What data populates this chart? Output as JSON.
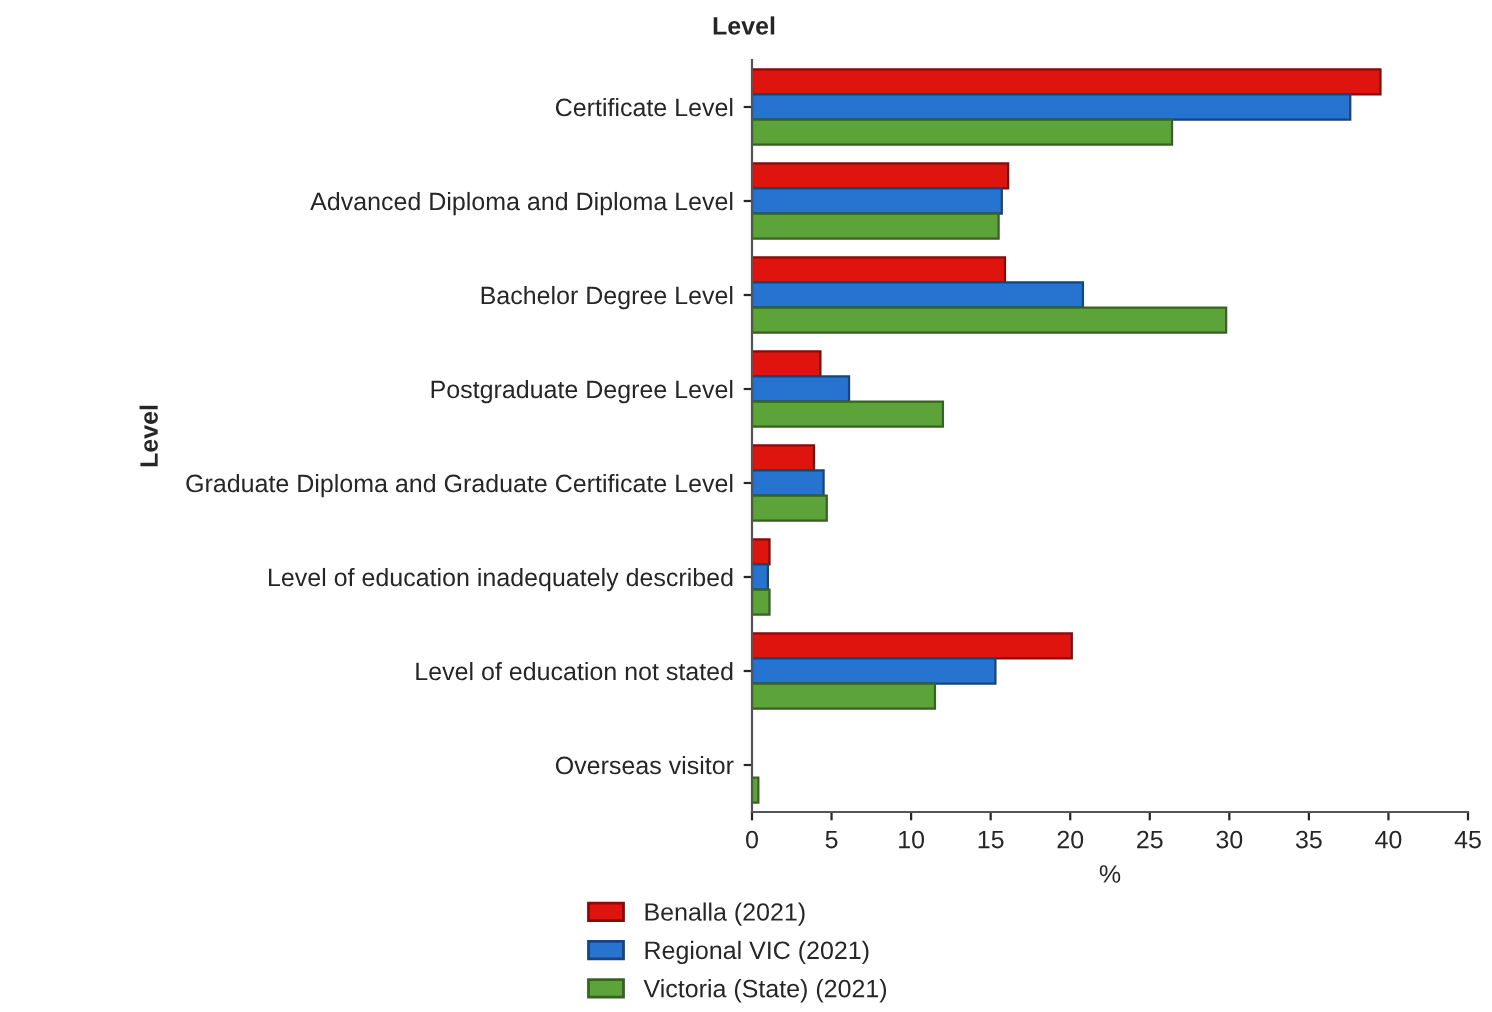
{
  "chart_data": {
    "type": "bar",
    "orientation": "horizontal",
    "title": "Level",
    "ylabel": "Level",
    "xlabel": "%",
    "categories": [
      "Certificate Level",
      "Advanced Diploma and Diploma Level",
      "Bachelor Degree Level",
      "Postgraduate Degree Level",
      "Graduate Diploma and Graduate Certificate Level",
      "Level of education inadequately described",
      "Level of education not stated",
      "Overseas visitor"
    ],
    "series": [
      {
        "name": "Benalla (2021)",
        "color": "#e0140f",
        "values": [
          39.5,
          16.1,
          15.9,
          4.3,
          3.9,
          1.1,
          20.1,
          0
        ]
      },
      {
        "name": "Regional VIC (2021)",
        "color": "#2673d0",
        "values": [
          37.6,
          15.7,
          20.8,
          6.1,
          4.5,
          1.0,
          15.3,
          0
        ]
      },
      {
        "name": "Victoria (State) (2021)",
        "color": "#5ca33a",
        "values": [
          26.4,
          15.5,
          29.8,
          12.0,
          4.7,
          1.1,
          11.5,
          0.4
        ]
      }
    ],
    "xlim": [
      0,
      45
    ],
    "xticks": [
      0,
      5,
      10,
      15,
      20,
      25,
      30,
      35,
      40,
      45
    ],
    "grid": false,
    "legend": "bottom"
  }
}
